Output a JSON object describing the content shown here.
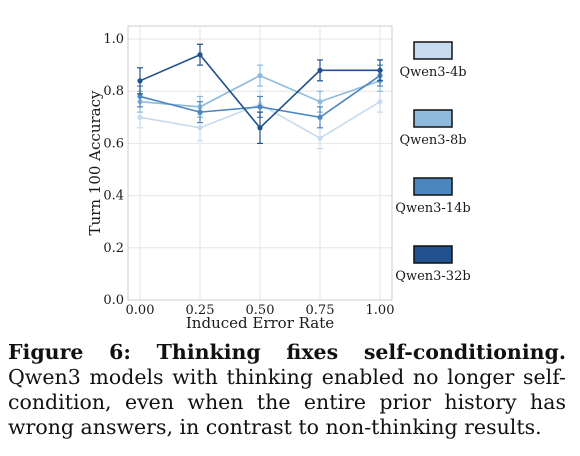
{
  "chart_data": {
    "type": "line",
    "title": "",
    "xlabel": "Induced Error Rate",
    "ylabel": "Turn 100 Accuracy",
    "x": [
      0.0,
      0.25,
      0.5,
      0.75,
      1.0
    ],
    "x_tick_labels": [
      "0.00",
      "0.25",
      "0.50",
      "0.75",
      "1.00"
    ],
    "y_tick_labels": [
      "0.0",
      "0.2",
      "0.4",
      "0.6",
      "0.8",
      "1.0"
    ],
    "y_ticks": [
      0.0,
      0.2,
      0.4,
      0.6,
      0.8,
      1.0
    ],
    "xlim": [
      -0.05,
      1.05
    ],
    "ylim": [
      0.0,
      1.05
    ],
    "grid": true,
    "legend_placement": "right",
    "series": [
      {
        "name": "Qwen3-4b",
        "color": "#c6dbef",
        "values": [
          0.7,
          0.66,
          0.75,
          0.62,
          0.76
        ],
        "errors": [
          0.04,
          0.05,
          0.05,
          0.04,
          0.04
        ]
      },
      {
        "name": "Qwen3-8b",
        "color": "#8dbadd",
        "values": [
          0.76,
          0.74,
          0.86,
          0.76,
          0.84
        ],
        "errors": [
          0.04,
          0.04,
          0.04,
          0.04,
          0.04
        ]
      },
      {
        "name": "Qwen3-14b",
        "color": "#4b86bf",
        "values": [
          0.78,
          0.72,
          0.74,
          0.7,
          0.86
        ],
        "errors": [
          0.04,
          0.04,
          0.04,
          0.04,
          0.04
        ]
      },
      {
        "name": "Qwen3-32b",
        "color": "#21518e",
        "values": [
          0.84,
          0.94,
          0.66,
          0.88,
          0.88
        ],
        "errors": [
          0.05,
          0.04,
          0.06,
          0.04,
          0.04
        ]
      }
    ]
  },
  "caption": {
    "label": "Figure 6: Thinking fixes self-conditioning.",
    "text": " Qwen3 models with thinking enabled no longer self-condition, even when the entire prior history has wrong answers, in contrast to non-thinking results."
  }
}
